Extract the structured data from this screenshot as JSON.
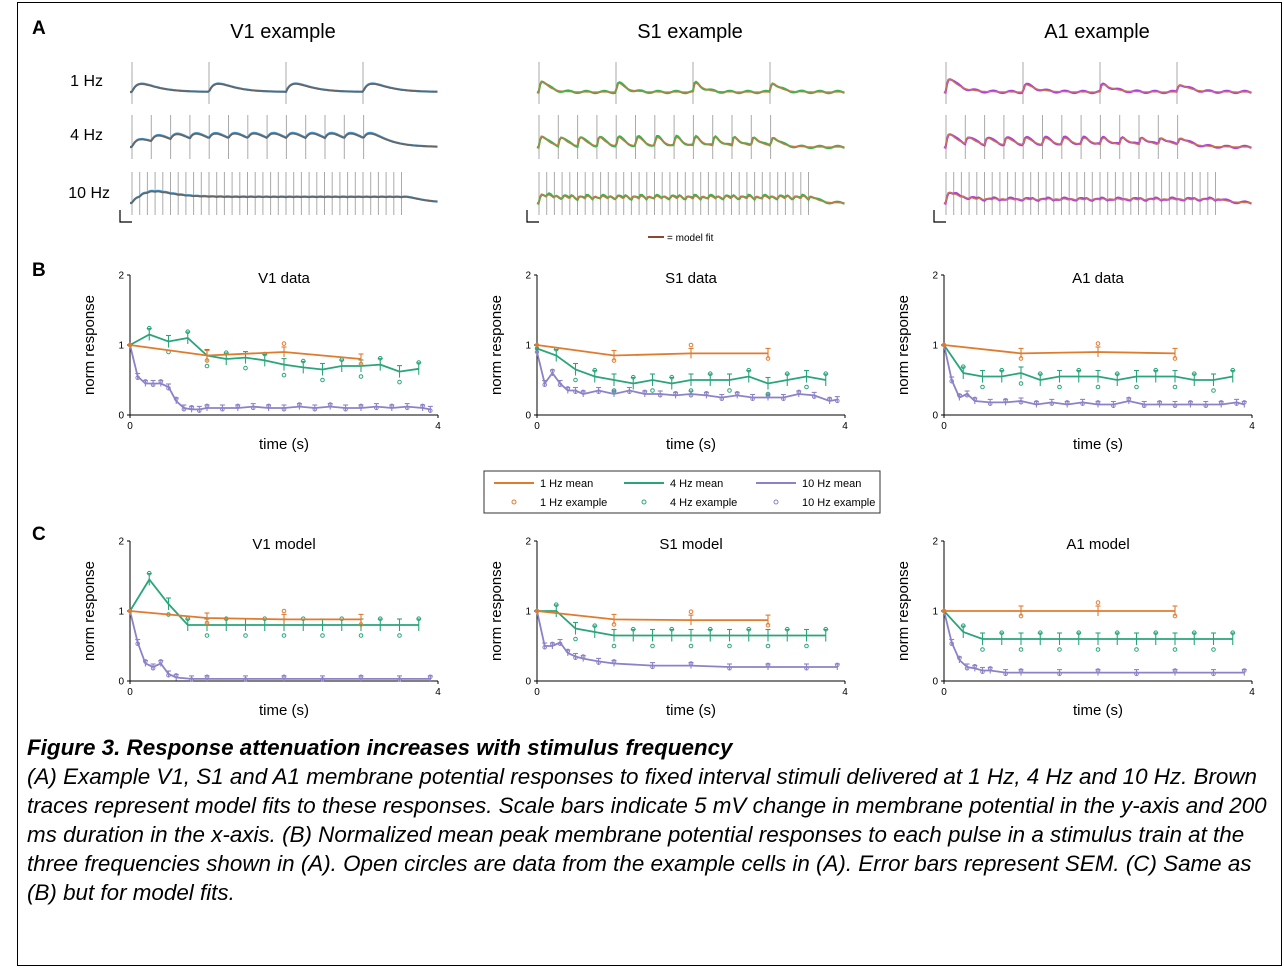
{
  "panel_letters": {
    "a": "A",
    "b": "B",
    "c": "C"
  },
  "panel_a": {
    "column_titles": [
      "V1 example",
      "S1 example",
      "A1 example"
    ],
    "row_labels": [
      "1 Hz",
      "4 Hz",
      "10 Hz"
    ],
    "model_fit_legend": "= model fit",
    "colors": {
      "V1": "#3a9ad9",
      "S1": "#3cb34a",
      "A1": "#b040d8",
      "model_fit": "#c8784a",
      "mean_trace": "#666666",
      "stim_line": "#aaaaaa"
    }
  },
  "panel_b_titles": [
    "V1 data",
    "S1 data",
    "A1 data"
  ],
  "panel_c_titles": [
    "V1 model",
    "S1 model",
    "A1 model"
  ],
  "axes": {
    "xlabel": "time (s)",
    "ylabel": "norm response",
    "xticks": [
      "0",
      "4"
    ],
    "yticks": [
      "0",
      "1",
      "2"
    ]
  },
  "legend": {
    "entries": [
      "1 Hz mean",
      "4 Hz mean",
      "10 Hz mean",
      "1 Hz example",
      "4 Hz example",
      "10 Hz example"
    ],
    "colors": {
      "1Hz": "#e07b2e",
      "4Hz": "#2aa57a",
      "10Hz": "#8c82c8"
    }
  },
  "chart_data": [
    {
      "type": "line",
      "title": "V1 data",
      "xlabel": "time (s)",
      "ylabel": "norm response",
      "xlim": [
        0,
        4
      ],
      "ylim": [
        0,
        2
      ],
      "series": [
        {
          "name": "1 Hz mean",
          "x": [
            0,
            1,
            2,
            3
          ],
          "y": [
            1.0,
            0.85,
            0.9,
            0.8
          ]
        },
        {
          "name": "4 Hz mean",
          "x": [
            0,
            0.25,
            0.5,
            0.75,
            1,
            1.25,
            1.5,
            1.75,
            2,
            2.25,
            2.5,
            2.75,
            3,
            3.25,
            3.5,
            3.75
          ],
          "y": [
            1.0,
            1.15,
            1.05,
            1.1,
            0.85,
            0.8,
            0.82,
            0.78,
            0.72,
            0.68,
            0.65,
            0.7,
            0.7,
            0.72,
            0.62,
            0.66
          ]
        },
        {
          "name": "10 Hz mean",
          "x": [
            0,
            0.1,
            0.2,
            0.3,
            0.4,
            0.5,
            0.6,
            0.7,
            0.8,
            0.9,
            1.0,
            1.2,
            1.4,
            1.6,
            1.8,
            2.0,
            2.2,
            2.4,
            2.6,
            2.8,
            3.0,
            3.2,
            3.4,
            3.6,
            3.8,
            3.9
          ],
          "y": [
            1.0,
            0.55,
            0.45,
            0.45,
            0.45,
            0.4,
            0.2,
            0.1,
            0.08,
            0.08,
            0.1,
            0.1,
            0.1,
            0.12,
            0.1,
            0.1,
            0.12,
            0.1,
            0.12,
            0.1,
            0.1,
            0.12,
            0.1,
            0.12,
            0.1,
            0.08
          ]
        }
      ]
    },
    {
      "type": "line",
      "title": "S1 data",
      "xlabel": "time (s)",
      "ylabel": "norm response",
      "xlim": [
        0,
        4
      ],
      "ylim": [
        0,
        2
      ],
      "series": [
        {
          "name": "1 Hz mean",
          "x": [
            0,
            1,
            2,
            3
          ],
          "y": [
            1.0,
            0.85,
            0.88,
            0.88
          ]
        },
        {
          "name": "4 Hz mean",
          "x": [
            0,
            0.25,
            0.5,
            0.75,
            1,
            1.25,
            1.5,
            1.75,
            2,
            2.25,
            2.5,
            2.75,
            3,
            3.25,
            3.5,
            3.75
          ],
          "y": [
            0.95,
            0.85,
            0.65,
            0.55,
            0.5,
            0.45,
            0.5,
            0.45,
            0.5,
            0.5,
            0.5,
            0.55,
            0.45,
            0.5,
            0.55,
            0.5
          ]
        },
        {
          "name": "10 Hz mean",
          "x": [
            0,
            0.1,
            0.2,
            0.3,
            0.4,
            0.5,
            0.6,
            0.8,
            1.0,
            1.2,
            1.4,
            1.6,
            1.8,
            2.0,
            2.2,
            2.4,
            2.6,
            2.8,
            3.0,
            3.2,
            3.4,
            3.6,
            3.8,
            3.9
          ],
          "y": [
            0.9,
            0.45,
            0.6,
            0.45,
            0.35,
            0.35,
            0.3,
            0.35,
            0.3,
            0.35,
            0.3,
            0.3,
            0.28,
            0.3,
            0.28,
            0.25,
            0.28,
            0.25,
            0.25,
            0.25,
            0.3,
            0.28,
            0.2,
            0.22
          ]
        }
      ]
    },
    {
      "type": "line",
      "title": "A1 data",
      "xlabel": "time (s)",
      "ylabel": "norm response",
      "xlim": [
        0,
        4
      ],
      "ylim": [
        0,
        2
      ],
      "series": [
        {
          "name": "1 Hz mean",
          "x": [
            0,
            1,
            2,
            3
          ],
          "y": [
            1.0,
            0.88,
            0.9,
            0.88
          ]
        },
        {
          "name": "4 Hz mean",
          "x": [
            0,
            0.25,
            0.5,
            0.75,
            1,
            1.25,
            1.5,
            1.75,
            2,
            2.25,
            2.5,
            2.75,
            3,
            3.25,
            3.5,
            3.75
          ],
          "y": [
            1.0,
            0.6,
            0.55,
            0.55,
            0.6,
            0.5,
            0.55,
            0.55,
            0.55,
            0.5,
            0.55,
            0.55,
            0.55,
            0.5,
            0.5,
            0.55
          ]
        },
        {
          "name": "10 Hz mean",
          "x": [
            0,
            0.1,
            0.2,
            0.3,
            0.4,
            0.6,
            0.8,
            1.0,
            1.2,
            1.4,
            1.6,
            1.8,
            2.0,
            2.2,
            2.4,
            2.6,
            2.8,
            3.0,
            3.2,
            3.4,
            3.6,
            3.8,
            3.9
          ],
          "y": [
            1.0,
            0.5,
            0.25,
            0.3,
            0.2,
            0.18,
            0.18,
            0.2,
            0.15,
            0.18,
            0.15,
            0.18,
            0.15,
            0.15,
            0.2,
            0.15,
            0.15,
            0.15,
            0.15,
            0.15,
            0.15,
            0.18,
            0.15
          ]
        }
      ]
    },
    {
      "type": "line",
      "title": "V1 model",
      "xlabel": "time (s)",
      "ylabel": "norm response",
      "xlim": [
        0,
        4
      ],
      "ylim": [
        0,
        2
      ],
      "series": [
        {
          "name": "1 Hz mean",
          "x": [
            0,
            1,
            2,
            3
          ],
          "y": [
            1.0,
            0.9,
            0.88,
            0.88
          ]
        },
        {
          "name": "4 Hz mean",
          "x": [
            0,
            0.25,
            0.5,
            0.75,
            1,
            1.25,
            1.5,
            1.75,
            2,
            2.25,
            2.5,
            2.75,
            3,
            3.25,
            3.5,
            3.75
          ],
          "y": [
            1.0,
            1.45,
            1.1,
            0.8,
            0.8,
            0.8,
            0.8,
            0.8,
            0.8,
            0.8,
            0.8,
            0.8,
            0.8,
            0.8,
            0.8,
            0.8
          ]
        },
        {
          "name": "10 Hz mean",
          "x": [
            0,
            0.1,
            0.2,
            0.3,
            0.4,
            0.5,
            0.6,
            0.8,
            1.0,
            1.5,
            2.0,
            2.5,
            3.0,
            3.5,
            3.9
          ],
          "y": [
            1.0,
            0.55,
            0.25,
            0.2,
            0.25,
            0.1,
            0.05,
            0.03,
            0.03,
            0.03,
            0.03,
            0.03,
            0.03,
            0.03,
            0.03
          ]
        }
      ]
    },
    {
      "type": "line",
      "title": "S1 model",
      "xlabel": "time (s)",
      "ylabel": "norm response",
      "xlim": [
        0,
        4
      ],
      "ylim": [
        0,
        2
      ],
      "series": [
        {
          "name": "1 Hz mean",
          "x": [
            0,
            1,
            2,
            3
          ],
          "y": [
            1.0,
            0.88,
            0.87,
            0.87
          ]
        },
        {
          "name": "4 Hz mean",
          "x": [
            0,
            0.25,
            0.5,
            0.75,
            1,
            1.25,
            1.5,
            1.75,
            2,
            2.25,
            2.5,
            2.75,
            3,
            3.25,
            3.5,
            3.75
          ],
          "y": [
            1.0,
            1.0,
            0.75,
            0.7,
            0.65,
            0.65,
            0.65,
            0.65,
            0.65,
            0.65,
            0.65,
            0.65,
            0.65,
            0.65,
            0.65,
            0.65
          ]
        },
        {
          "name": "10 Hz mean",
          "x": [
            0,
            0.1,
            0.2,
            0.3,
            0.4,
            0.5,
            0.6,
            0.8,
            1.0,
            1.5,
            2.0,
            2.5,
            3.0,
            3.5,
            3.9
          ],
          "y": [
            1.0,
            0.5,
            0.5,
            0.55,
            0.4,
            0.35,
            0.32,
            0.28,
            0.25,
            0.22,
            0.22,
            0.2,
            0.2,
            0.2,
            0.2
          ]
        }
      ]
    },
    {
      "type": "line",
      "title": "A1 model",
      "xlabel": "time (s)",
      "ylabel": "norm response",
      "xlim": [
        0,
        4
      ],
      "ylim": [
        0,
        2
      ],
      "series": [
        {
          "name": "1 Hz mean",
          "x": [
            0,
            1,
            2,
            3
          ],
          "y": [
            1.0,
            1.0,
            1.0,
            1.0
          ]
        },
        {
          "name": "4 Hz mean",
          "x": [
            0,
            0.25,
            0.5,
            0.75,
            1,
            1.25,
            1.5,
            1.75,
            2,
            2.25,
            2.5,
            2.75,
            3,
            3.25,
            3.5,
            3.75
          ],
          "y": [
            1.0,
            0.7,
            0.6,
            0.6,
            0.6,
            0.6,
            0.6,
            0.6,
            0.6,
            0.6,
            0.6,
            0.6,
            0.6,
            0.6,
            0.6,
            0.6
          ]
        },
        {
          "name": "10 Hz mean",
          "x": [
            0,
            0.1,
            0.2,
            0.3,
            0.4,
            0.5,
            0.6,
            0.8,
            1.0,
            1.5,
            2.0,
            2.5,
            3.0,
            3.5,
            3.9
          ],
          "y": [
            1.0,
            0.55,
            0.3,
            0.2,
            0.18,
            0.15,
            0.15,
            0.12,
            0.12,
            0.12,
            0.12,
            0.12,
            0.12,
            0.12,
            0.12
          ]
        }
      ]
    }
  ],
  "caption": {
    "title": "Figure 3. Response attenuation increases with stimulus frequency",
    "body": "(A) Example V1, S1 and A1 membrane potential responses to fixed interval stimuli delivered at 1 Hz, 4 Hz and 10 Hz. Brown traces represent model fits to these responses. Scale bars indicate 5 mV change in membrane potential in the y-axis and 200 ms duration in the x-axis. (B) Normalized mean peak membrane potential responses to each pulse in a stimulus train at the three frequencies shown in (A). Open circles are data from the example cells in (A). Error bars represent SEM. (C) Same as (B) but for model fits."
  }
}
